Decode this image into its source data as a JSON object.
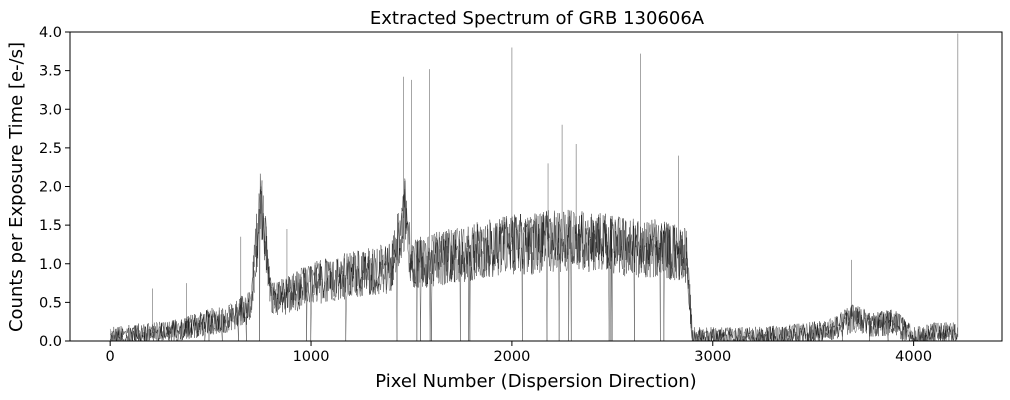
{
  "chart_data": {
    "type": "line",
    "title": "Extracted Spectrum of GRB 130606A",
    "xlabel": "Pixel Number (Dispersion Direction)",
    "ylabel": "Counts per Exposure Time [e-/s]",
    "xlim": [
      -200,
      4440
    ],
    "ylim": [
      0.0,
      4.0
    ],
    "xticks": [
      {
        "value": 0,
        "label": "0"
      },
      {
        "value": 1000,
        "label": "1000"
      },
      {
        "value": 2000,
        "label": "2000"
      },
      {
        "value": 3000,
        "label": "3000"
      },
      {
        "value": 4000,
        "label": "4000"
      }
    ],
    "yticks": [
      {
        "value": 0.0,
        "label": "0.0"
      },
      {
        "value": 0.5,
        "label": "0.5"
      },
      {
        "value": 1.0,
        "label": "1.0"
      },
      {
        "value": 1.5,
        "label": "1.5"
      },
      {
        "value": 2.0,
        "label": "2.0"
      },
      {
        "value": 2.5,
        "label": "2.5"
      },
      {
        "value": 3.0,
        "label": "3.0"
      },
      {
        "value": 3.5,
        "label": "3.5"
      },
      {
        "value": 4.0,
        "label": "4.0"
      }
    ],
    "grid": false,
    "line_color": "#000000",
    "series": [
      {
        "x": [
          0,
          100,
          200,
          300,
          400,
          500,
          600,
          700,
          750,
          800,
          900,
          1000,
          1100,
          1200,
          1300,
          1400,
          1470,
          1500,
          1600,
          1700,
          1800,
          1900,
          2000,
          2100,
          2200,
          2300,
          2400,
          2500,
          2600,
          2700,
          2800,
          2870,
          2900,
          3000,
          3200,
          3400,
          3600,
          3700,
          3800,
          3900,
          4000,
          4100,
          4200,
          4220
        ],
        "y": [
          0.05,
          0.08,
          0.1,
          0.12,
          0.18,
          0.25,
          0.3,
          0.45,
          1.9,
          0.55,
          0.6,
          0.75,
          0.8,
          0.85,
          0.9,
          0.95,
          1.7,
          1.0,
          1.05,
          1.1,
          1.15,
          1.2,
          1.25,
          1.25,
          1.3,
          1.3,
          1.3,
          1.25,
          1.2,
          1.2,
          1.15,
          1.1,
          0.05,
          0.05,
          0.05,
          0.08,
          0.15,
          0.3,
          0.2,
          0.25,
          0.05,
          0.1,
          0.1,
          0.05
        ],
        "spikes": [
          {
            "x": 210,
            "y": 0.68
          },
          {
            "x": 380,
            "y": 0.75
          },
          {
            "x": 650,
            "y": 1.35
          },
          {
            "x": 750,
            "y": 2.0
          },
          {
            "x": 880,
            "y": 1.45
          },
          {
            "x": 1460,
            "y": 3.42
          },
          {
            "x": 1500,
            "y": 3.38
          },
          {
            "x": 1590,
            "y": 3.52
          },
          {
            "x": 2000,
            "y": 3.8
          },
          {
            "x": 2180,
            "y": 2.3
          },
          {
            "x": 2250,
            "y": 2.8
          },
          {
            "x": 2320,
            "y": 2.55
          },
          {
            "x": 2640,
            "y": 3.72
          },
          {
            "x": 2830,
            "y": 2.4
          },
          {
            "x": 3690,
            "y": 1.05
          },
          {
            "x": 4220,
            "y": 3.98
          }
        ]
      }
    ]
  }
}
